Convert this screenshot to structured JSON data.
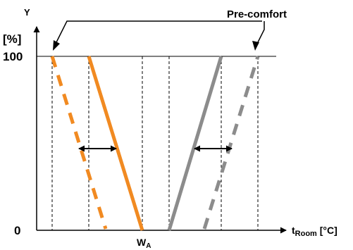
{
  "diagram": {
    "y_axis_letter": "Y",
    "y_unit": "[%]",
    "y_tick_top": "100",
    "y_tick_bottom": "0",
    "x_label_main": "t",
    "x_label_sub": "Room",
    "x_label_unit": " [°C]",
    "w_main": "W",
    "w_sub": "A",
    "callout": "Pre-comfort"
  },
  "colors": {
    "heating": "#f18a21",
    "cooling": "#8c8c8c",
    "axis": "#000000",
    "guide": "#000000"
  },
  "icons": [
    "arrow-up-icon",
    "arrow-right-icon",
    "double-arrow-icon"
  ]
}
